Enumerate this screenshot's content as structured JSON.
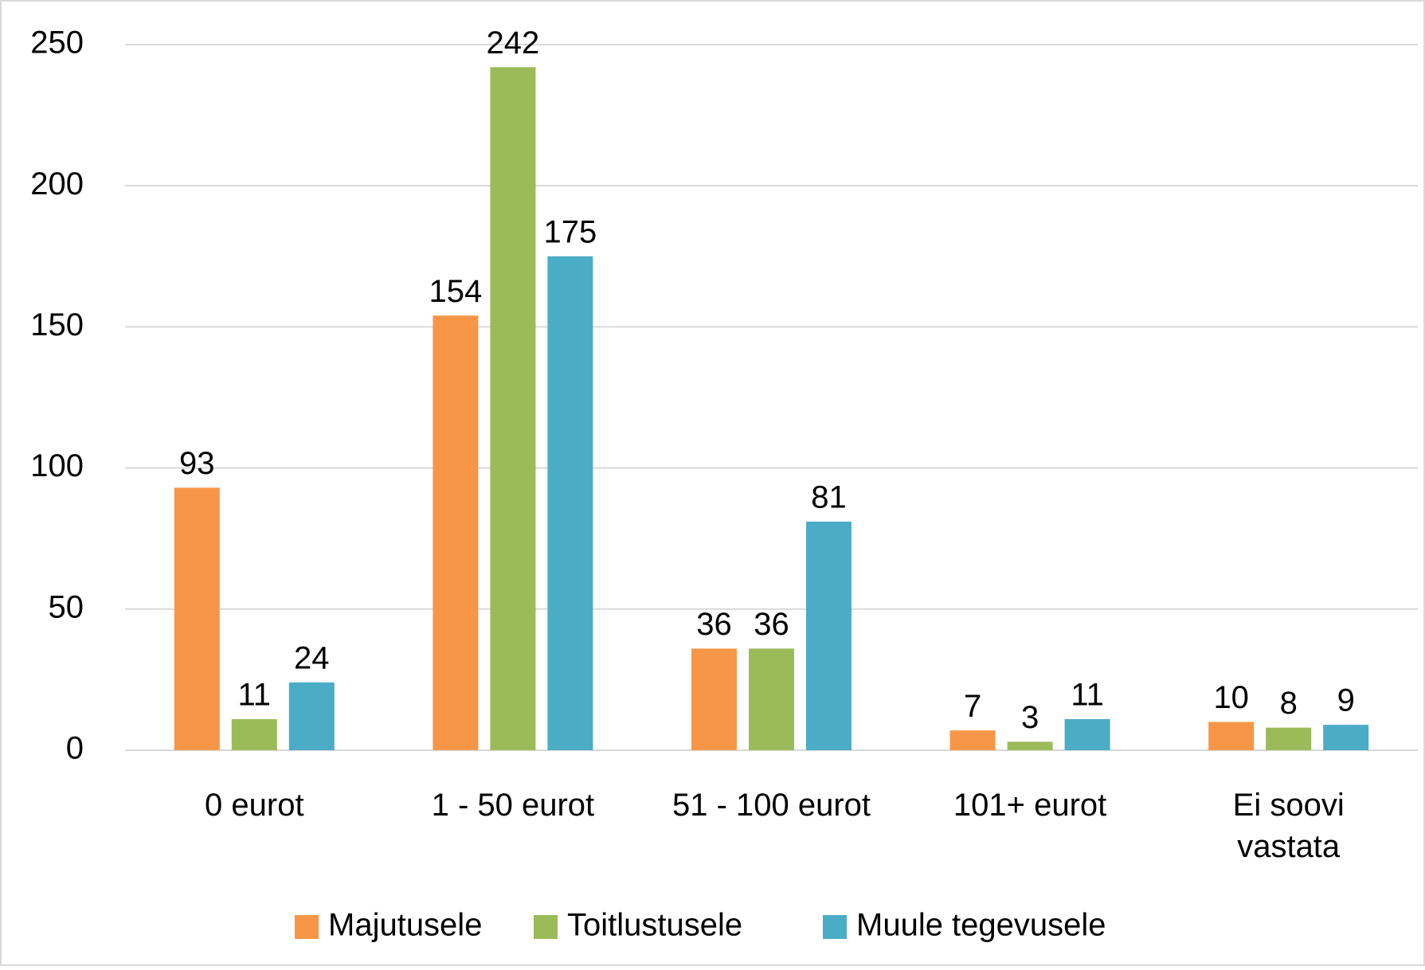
{
  "chart_data": {
    "type": "bar",
    "categories": [
      "0 eurot",
      "1 - 50 eurot",
      "51 - 100 eurot",
      "101+ eurot",
      "Ei soovi vastata"
    ],
    "series": [
      {
        "name": "Majutusele",
        "color": "#f79646",
        "values": [
          93,
          154,
          36,
          7,
          10
        ]
      },
      {
        "name": "Toitlustusele",
        "color": "#9bbb59",
        "values": [
          11,
          242,
          36,
          3,
          8
        ]
      },
      {
        "name": "Muule tegevusele",
        "color": "#4bacc6",
        "values": [
          24,
          175,
          81,
          11,
          9
        ]
      }
    ],
    "ylim": [
      0,
      250
    ],
    "yticks": [
      0,
      50,
      100,
      150,
      200,
      250
    ],
    "grid": true,
    "legend": "bottom"
  }
}
